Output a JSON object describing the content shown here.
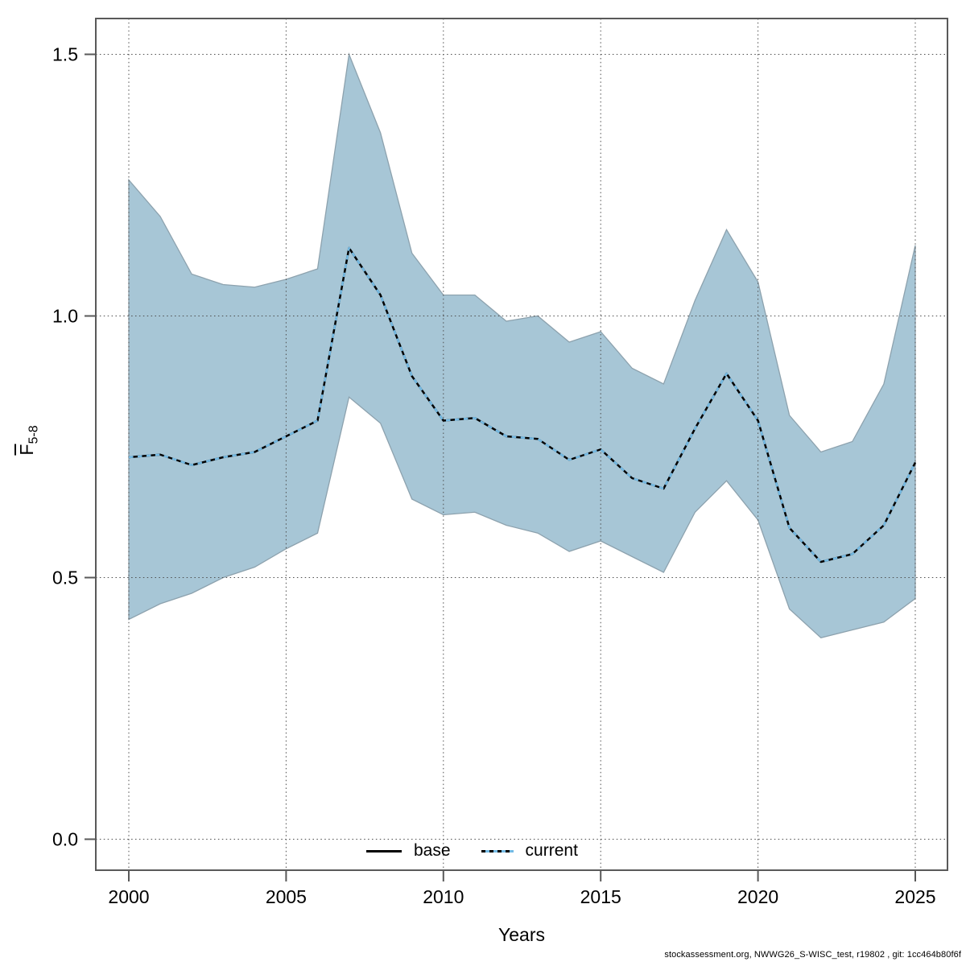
{
  "footer": {
    "text": "stockassessment.org, NWWG26_S-WISC_test, r19802 , git: 1cc464b80f6f"
  },
  "chart_data": {
    "type": "area",
    "title": "",
    "xlabel": "Years",
    "ylabel": "Fbar 5-8",
    "ylabel_parts": {
      "main": "F",
      "sub": "5-8"
    },
    "xlim": [
      1998.9,
      2026.1
    ],
    "ylim": [
      0,
      1.56
    ],
    "grid": "dotted",
    "x": [
      2000,
      2001,
      2002,
      2003,
      2004,
      2005,
      2006,
      2007,
      2008,
      2009,
      2010,
      2011,
      2012,
      2013,
      2014,
      2015,
      2016,
      2017,
      2018,
      2019,
      2020,
      2021,
      2022,
      2023,
      2024,
      2025
    ],
    "series": [
      {
        "name": "base",
        "style": "solid-black",
        "values": [
          0.73,
          0.735,
          0.715,
          0.73,
          0.74,
          0.77,
          0.8,
          1.13,
          1.04,
          0.885,
          0.8,
          0.805,
          0.77,
          0.765,
          0.725,
          0.745,
          0.69,
          0.67,
          0.785,
          0.89,
          0.8,
          0.595,
          0.53,
          0.545,
          0.6,
          0.72
        ]
      },
      {
        "name": "current",
        "style": "dashed-blue",
        "values": [
          0.73,
          0.735,
          0.715,
          0.73,
          0.74,
          0.77,
          0.8,
          1.13,
          1.04,
          0.885,
          0.8,
          0.805,
          0.77,
          0.765,
          0.725,
          0.745,
          0.69,
          0.67,
          0.785,
          0.89,
          0.8,
          0.595,
          0.53,
          0.545,
          0.6,
          0.72
        ]
      }
    ],
    "band": {
      "series": "current",
      "lower": [
        0.42,
        0.45,
        0.47,
        0.5,
        0.52,
        0.555,
        0.585,
        0.845,
        0.795,
        0.65,
        0.62,
        0.625,
        0.6,
        0.585,
        0.55,
        0.57,
        0.54,
        0.51,
        0.625,
        0.685,
        0.61,
        0.44,
        0.385,
        0.4,
        0.415,
        0.46
      ],
      "upper": [
        1.26,
        1.19,
        1.08,
        1.06,
        1.055,
        1.07,
        1.09,
        1.5,
        1.35,
        1.12,
        1.04,
        1.04,
        0.99,
        1.0,
        0.95,
        0.97,
        0.9,
        0.87,
        1.03,
        1.165,
        1.065,
        0.81,
        0.74,
        0.76,
        0.87,
        1.135
      ]
    },
    "xticks": [
      {
        "label": "2000",
        "value": 2000
      },
      {
        "label": "2005",
        "value": 2005
      },
      {
        "label": "2010",
        "value": 2010
      },
      {
        "label": "2015",
        "value": 2015
      },
      {
        "label": "2020",
        "value": 2020
      },
      {
        "label": "2025",
        "value": 2025
      }
    ],
    "yticks": [
      {
        "label": "0.0",
        "value": 0.0
      },
      {
        "label": "0.5",
        "value": 0.5
      },
      {
        "label": "1.0",
        "value": 1.0
      },
      {
        "label": "1.5",
        "value": 1.5
      }
    ],
    "legend": {
      "position": "bottom-inside",
      "entries": [
        "base",
        "current"
      ]
    },
    "colors": {
      "band": "#a7c6d6",
      "band_edge": "#8da2ae",
      "base_line": "#000000",
      "current_line": "#74bae4",
      "grid": "#4d4d4d",
      "axis": "#595959",
      "text": "#000000"
    }
  }
}
